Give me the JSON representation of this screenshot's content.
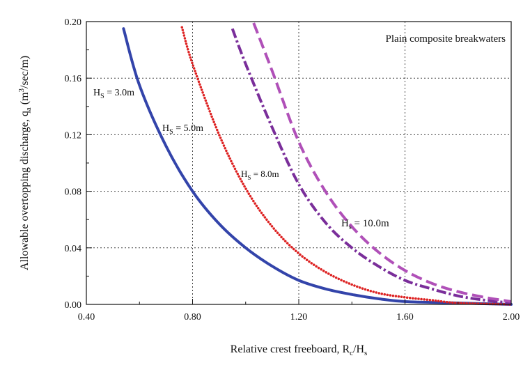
{
  "chart_data": {
    "type": "line",
    "annotation": "Plain composite breakwaters",
    "xlabel": {
      "main": "Relative crest freeboard, R",
      "sub1": "c",
      "mid": "/H",
      "sub2": "s"
    },
    "ylabel": {
      "main": "Allowable overtopping discharge, q",
      "sub": "a",
      "unit_pre": " (m",
      "sup": "3",
      "unit_post": "/sec/m)"
    },
    "xlim": [
      0.4,
      2.0
    ],
    "ylim": [
      0,
      0.2
    ],
    "xticks": [
      0.4,
      0.8,
      1.2,
      1.6,
      2.0
    ],
    "xtick_labels": [
      "0.40",
      "0.80",
      "1.20",
      "1.60",
      "2.00"
    ],
    "yticks": [
      0,
      0.04,
      0.08,
      0.12,
      0.16,
      0.2
    ],
    "ytick_labels": [
      "0.00",
      "0.04",
      "0.08",
      "0.12",
      "0.16",
      "0.20"
    ],
    "grid": true,
    "series": [
      {
        "name": "Hs = 3.0m",
        "label_main": "H",
        "label_sub": "S",
        "label_rest": " = 3.0m",
        "style": "solid",
        "color": "#3344aa",
        "x": [
          0.54,
          0.6,
          0.7,
          0.8,
          0.9,
          1.0,
          1.1,
          1.2,
          1.3,
          1.4,
          1.5,
          1.6,
          1.8,
          2.0
        ],
        "y": [
          0.195,
          0.155,
          0.112,
          0.08,
          0.057,
          0.04,
          0.027,
          0.017,
          0.011,
          0.007,
          0.004,
          0.002,
          0.001,
          0.0
        ]
      },
      {
        "name": "Hs = 5.0m",
        "label_main": "H",
        "label_sub": "S",
        "label_rest": " = 5.0m",
        "style": "dotted",
        "color": "#dd2222",
        "x": [
          0.76,
          0.8,
          0.9,
          1.0,
          1.1,
          1.2,
          1.3,
          1.4,
          1.5,
          1.6,
          1.7,
          1.8,
          2.0
        ],
        "y": [
          0.196,
          0.17,
          0.12,
          0.082,
          0.055,
          0.036,
          0.023,
          0.014,
          0.008,
          0.005,
          0.003,
          0.001,
          0.0
        ]
      },
      {
        "name": "Hs = 8.0m",
        "label_main": "H",
        "label_sub": "S",
        "label_rest": " = 8.0m",
        "style": "dashdot",
        "color": "#7a2e9a",
        "x": [
          0.95,
          1.0,
          1.1,
          1.2,
          1.3,
          1.4,
          1.5,
          1.6,
          1.7,
          1.8,
          1.9,
          2.0
        ],
        "y": [
          0.195,
          0.17,
          0.125,
          0.085,
          0.058,
          0.04,
          0.027,
          0.017,
          0.011,
          0.006,
          0.003,
          0.001
        ]
      },
      {
        "name": "Hs = 10.0m",
        "label_main": "H",
        "label_sub": "s",
        "label_rest": " = 10.0m",
        "style": "dashed",
        "color": "#b050b8",
        "x": [
          1.03,
          1.1,
          1.2,
          1.3,
          1.4,
          1.5,
          1.6,
          1.7,
          1.8,
          1.9,
          2.0
        ],
        "y": [
          0.199,
          0.165,
          0.115,
          0.08,
          0.055,
          0.037,
          0.024,
          0.015,
          0.009,
          0.005,
          0.002
        ]
      }
    ]
  }
}
